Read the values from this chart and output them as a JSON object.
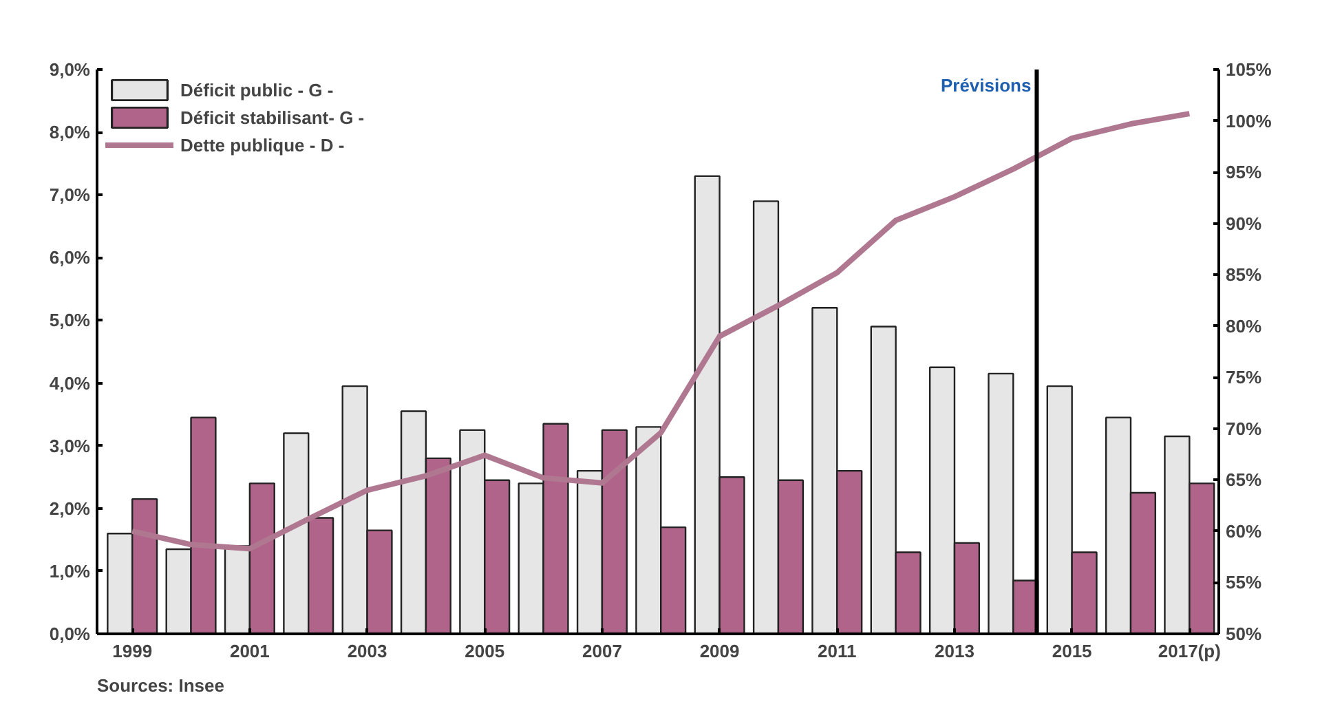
{
  "chart_data": {
    "type": "bar",
    "x": [
      1999,
      2000,
      2001,
      2002,
      2003,
      2004,
      2005,
      2006,
      2007,
      2008,
      2009,
      2010,
      2011,
      2012,
      2013,
      2014,
      2015,
      2016,
      2017
    ],
    "series": [
      {
        "name": "Déficit public - G -",
        "color": "#e6e6e6",
        "values": [
          1.6,
          1.35,
          1.4,
          3.2,
          3.95,
          3.55,
          3.25,
          2.4,
          2.6,
          3.3,
          7.3,
          6.9,
          5.2,
          4.9,
          4.25,
          4.15,
          3.95,
          3.45,
          3.15
        ]
      },
      {
        "name": "Déficit stabilisant- G -",
        "color": "#b0648a",
        "values": [
          2.15,
          3.45,
          2.4,
          1.85,
          1.65,
          2.8,
          2.45,
          3.35,
          3.25,
          1.7,
          2.5,
          2.45,
          2.6,
          1.3,
          1.45,
          0.85,
          1.3,
          2.25,
          2.4
        ]
      },
      {
        "name": "Dette publique - D -",
        "type": "line",
        "axis": "y2",
        "color": "#b07890",
        "values": [
          60,
          58.7,
          58.3,
          61.2,
          64,
          65.4,
          67.4,
          65.2,
          64.7,
          69.6,
          79,
          82,
          85.2,
          90.3,
          92.6,
          95.3,
          98.3,
          99.7,
          100.7
        ]
      }
    ],
    "xlim": [
      1998.4,
      2017.5
    ],
    "xticks": [
      1999,
      2001,
      2003,
      2005,
      2007,
      2009,
      2011,
      2013,
      2015,
      {
        "value": 2017,
        "label": "2017(p)"
      }
    ],
    "ylim": [
      0,
      9
    ],
    "yticks": [
      {
        "value": 0,
        "label": "0,0%"
      },
      {
        "value": 1,
        "label": "1,0%"
      },
      {
        "value": 2,
        "label": "2,0%"
      },
      {
        "value": 3,
        "label": "3,0%"
      },
      {
        "value": 4,
        "label": "4,0%"
      },
      {
        "value": 5,
        "label": "5,0%"
      },
      {
        "value": 6,
        "label": "6,0%"
      },
      {
        "value": 7,
        "label": "7,0%"
      },
      {
        "value": 8,
        "label": "8,0%"
      },
      {
        "value": 9,
        "label": "9,0%"
      }
    ],
    "y2lim": [
      50,
      105
    ],
    "y2ticks": [
      {
        "value": 50,
        "label": "50%"
      },
      {
        "value": 55,
        "label": "55%"
      },
      {
        "value": 60,
        "label": "60%"
      },
      {
        "value": 65,
        "label": "65%"
      },
      {
        "value": 70,
        "label": "70%"
      },
      {
        "value": 75,
        "label": "75%"
      },
      {
        "value": 80,
        "label": "80%"
      },
      {
        "value": 85,
        "label": "85%"
      },
      {
        "value": 90,
        "label": "90%"
      },
      {
        "value": 95,
        "label": "95%"
      },
      {
        "value": 100,
        "label": "100%"
      },
      {
        "value": 105,
        "label": "105%"
      }
    ],
    "ref_lines": [
      {
        "axis": "x",
        "value": 2014.4,
        "label": "Prévisions",
        "color": "#000000"
      }
    ],
    "annotations": [
      "Sources: Insee"
    ],
    "legend": "top left",
    "grid": false,
    "marker": "none",
    "line_style": "solid"
  }
}
